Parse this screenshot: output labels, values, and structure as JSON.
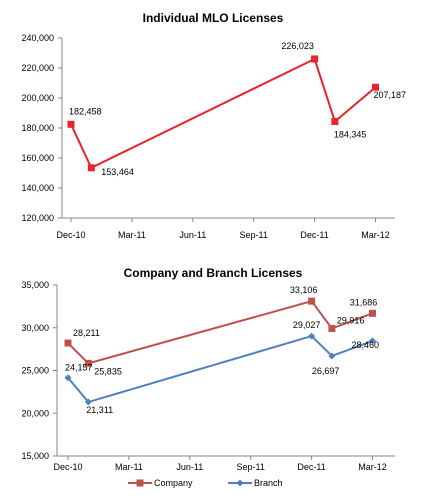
{
  "chart_data": [
    {
      "type": "line",
      "title": "Individual MLO Licenses",
      "x_tick_labels": [
        "Dec-10",
        "Mar-11",
        "Jun-11",
        "Sep-11",
        "Dec-11",
        "Mar-12"
      ],
      "x": [
        "2010-12",
        "2011-01",
        "2011-12",
        "2012-01",
        "2012-03"
      ],
      "series": [
        {
          "values": [
            182458,
            153464,
            226023,
            184345,
            207187
          ],
          "data_labels": [
            "182,458",
            "153,464",
            "226,023",
            "184,345",
            "207,187"
          ],
          "color": "#e8232a"
        }
      ],
      "ylim": [
        120000,
        240000
      ],
      "y_ticks": [
        120000,
        140000,
        160000,
        180000,
        200000,
        220000,
        240000
      ],
      "y_tick_labels": [
        "120,000",
        "140,000",
        "160,000",
        "180,000",
        "200,000",
        "220,000",
        "240,000"
      ],
      "grid": false,
      "marker": "square"
    },
    {
      "type": "line",
      "title": "Company and Branch Licenses",
      "x_tick_labels": [
        "Dec-10",
        "Mar-11",
        "Jun-11",
        "Sep-11",
        "Dec-11",
        "Mar-12"
      ],
      "x": [
        "2010-12",
        "2011-01",
        "2011-12",
        "2012-01",
        "2012-03"
      ],
      "series": [
        {
          "name": "Company",
          "values": [
            28211,
            25835,
            33106,
            29916,
            31686
          ],
          "data_labels": [
            "28,211",
            "25,835",
            "33,106",
            "29,916",
            "31,686"
          ],
          "color": "#c0504d",
          "marker": "square"
        },
        {
          "name": "Branch",
          "values": [
            24157,
            21311,
            29027,
            26697,
            28460
          ],
          "data_labels": [
            "24,157",
            "21,311",
            "29,027",
            "26,697",
            "28,460"
          ],
          "color": "#4f81bd",
          "marker": "diamond"
        }
      ],
      "ylim": [
        15000,
        35000
      ],
      "y_ticks": [
        15000,
        20000,
        25000,
        30000,
        35000
      ],
      "y_tick_labels": [
        "15,000",
        "20,000",
        "25,000",
        "30,000",
        "35,000"
      ],
      "grid": false,
      "legend": "bottom"
    }
  ]
}
